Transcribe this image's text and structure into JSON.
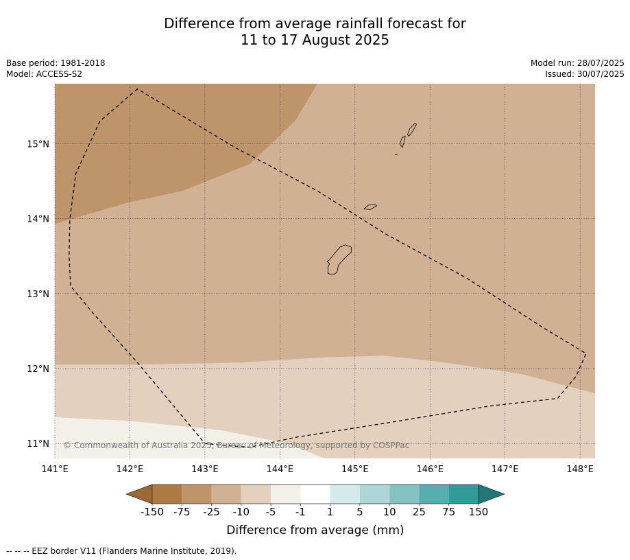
{
  "title": {
    "line1": "Difference from average rainfall forecast for",
    "line2": "11 to 17 August 2025"
  },
  "meta_left": {
    "base_period": "Base period: 1981-2018",
    "model": "Model: ACCESS-S2"
  },
  "meta_right": {
    "model_run": "Model run: 28/07/2025",
    "issued": "Issued: 30/07/2025"
  },
  "map": {
    "lon_range": [
      141.0,
      148.2
    ],
    "lat_range": [
      10.8,
      15.8
    ],
    "lon_ticks": [
      {
        "value": 141,
        "label": "141°E"
      },
      {
        "value": 142,
        "label": "142°E"
      },
      {
        "value": 143,
        "label": "143°E"
      },
      {
        "value": 144,
        "label": "144°E"
      },
      {
        "value": 145,
        "label": "145°E"
      },
      {
        "value": 146,
        "label": "146°E"
      },
      {
        "value": 147,
        "label": "147°E"
      },
      {
        "value": 148,
        "label": "148°E"
      }
    ],
    "lat_ticks": [
      {
        "value": 15,
        "label": "15°N"
      },
      {
        "value": 14,
        "label": "14°N"
      },
      {
        "value": 13,
        "label": "13°N"
      },
      {
        "value": 12,
        "label": "12°N"
      },
      {
        "value": 11,
        "label": "11°N"
      }
    ],
    "gridlines": true,
    "copyright": "© Commonwealth of Australia 2025, Bureau of Meteorology, supported by COSPPac",
    "regions": [
      {
        "category": "-75 to -25",
        "color": "#be946a",
        "polygon": [
          [
            141.0,
            15.8
          ],
          [
            144.5,
            15.8
          ],
          [
            144.2,
            15.3
          ],
          [
            143.6,
            14.73
          ],
          [
            142.7,
            14.37
          ],
          [
            142.0,
            14.22
          ],
          [
            141.0,
            13.93
          ],
          [
            141.0,
            15.8
          ]
        ]
      },
      {
        "category": "-10 to -5",
        "color": "#e3d0bf",
        "polygon": [
          [
            141.0,
            12.05
          ],
          [
            142.0,
            12.05
          ],
          [
            143.5,
            12.08
          ],
          [
            144.6,
            12.15
          ],
          [
            145.4,
            12.17
          ],
          [
            146.2,
            12.08
          ],
          [
            147.2,
            11.93
          ],
          [
            148.2,
            11.67
          ],
          [
            148.2,
            10.8
          ],
          [
            141.0,
            10.8
          ],
          [
            141.0,
            12.05
          ]
        ]
      },
      {
        "category": "-5 to -1",
        "color": "#f3efe9",
        "polygon": [
          [
            141.0,
            11.35
          ],
          [
            142.0,
            11.3
          ],
          [
            143.2,
            11.18
          ],
          [
            144.1,
            11.0
          ],
          [
            144.6,
            10.8
          ],
          [
            141.0,
            10.8
          ],
          [
            141.0,
            11.35
          ]
        ]
      }
    ],
    "islands": [
      {
        "name": "Guam",
        "outline": [
          [
            144.63,
            13.43
          ],
          [
            144.66,
            13.45
          ],
          [
            144.74,
            13.55
          ],
          [
            144.8,
            13.62
          ],
          [
            144.87,
            13.65
          ],
          [
            144.95,
            13.62
          ],
          [
            144.95,
            13.55
          ],
          [
            144.87,
            13.48
          ],
          [
            144.78,
            13.38
          ],
          [
            144.76,
            13.28
          ],
          [
            144.7,
            13.25
          ],
          [
            144.64,
            13.27
          ],
          [
            144.64,
            13.35
          ],
          [
            144.66,
            13.4
          ],
          [
            144.63,
            13.43
          ]
        ]
      },
      {
        "name": "Rota",
        "outline": [
          [
            145.12,
            14.13
          ],
          [
            145.18,
            14.18
          ],
          [
            145.26,
            14.19
          ],
          [
            145.29,
            14.17
          ],
          [
            145.2,
            14.12
          ],
          [
            145.12,
            14.13
          ]
        ]
      },
      {
        "name": "Tinian",
        "outline": [
          [
            145.6,
            15.0
          ],
          [
            145.63,
            15.08
          ],
          [
            145.67,
            15.1
          ],
          [
            145.66,
            15.03
          ],
          [
            145.63,
            14.95
          ],
          [
            145.6,
            15.0
          ]
        ]
      },
      {
        "name": "Saipan",
        "outline": [
          [
            145.7,
            15.12
          ],
          [
            145.73,
            15.2
          ],
          [
            145.8,
            15.27
          ],
          [
            145.82,
            15.26
          ],
          [
            145.78,
            15.18
          ],
          [
            145.72,
            15.1
          ],
          [
            145.7,
            15.12
          ]
        ]
      },
      {
        "name": "Aguijan",
        "outline": [
          [
            145.53,
            14.85
          ],
          [
            145.57,
            14.86
          ]
        ]
      }
    ],
    "eez_border": [
      [
        142.1,
        15.73
      ],
      [
        141.6,
        15.3
      ],
      [
        141.28,
        14.6
      ],
      [
        141.2,
        14.0
      ],
      [
        141.19,
        13.5
      ],
      [
        141.21,
        13.1
      ],
      [
        141.5,
        12.75
      ],
      [
        142.1,
        12.08
      ],
      [
        142.6,
        11.48
      ],
      [
        143.0,
        11.0
      ],
      [
        143.3,
        10.97
      ],
      [
        143.6,
        10.95
      ],
      [
        144.2,
        11.08
      ],
      [
        145.4,
        11.27
      ],
      [
        146.8,
        11.5
      ],
      [
        147.7,
        11.6
      ],
      [
        147.95,
        11.9
      ],
      [
        148.08,
        12.2
      ],
      [
        147.5,
        12.55
      ],
      [
        146.5,
        13.2
      ],
      [
        145.4,
        13.8
      ],
      [
        144.5,
        14.37
      ],
      [
        143.4,
        14.95
      ],
      [
        142.1,
        15.73
      ]
    ]
  },
  "legend": {
    "title": "Difference from average (mm)",
    "bins": [
      {
        "color": "#9c6936"
      },
      {
        "color": "#ae7a43"
      },
      {
        "color": "#be946a"
      },
      {
        "color": "#d1b194"
      },
      {
        "color": "#e3d0bf"
      },
      {
        "color": "#f3efe9"
      },
      {
        "color": "#ffffff"
      },
      {
        "color": "#d5ebeb"
      },
      {
        "color": "#afd6d6"
      },
      {
        "color": "#85c2c2"
      },
      {
        "color": "#58aeae"
      },
      {
        "color": "#339a9a"
      },
      {
        "color": "#257777"
      }
    ],
    "ticks": [
      "-150",
      "-75",
      "-25",
      "-10",
      "-5",
      "-1",
      "1",
      "5",
      "10",
      "25",
      "75",
      "150"
    ]
  },
  "map_background_color": "#d1b194",
  "footer": "--  --  -- EEZ border V11 (Flanders Marine Institute, 2019)."
}
